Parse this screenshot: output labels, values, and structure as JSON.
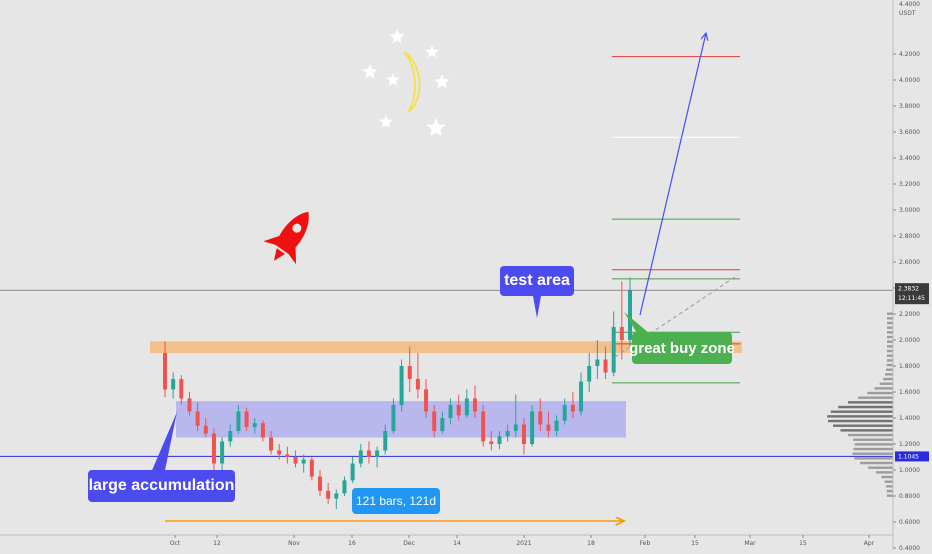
{
  "chart_data": {
    "type": "candlestick",
    "price_axis": {
      "currency": "USDT",
      "header_label": "4.4000",
      "ticks": [
        "4.2000",
        "4.0000",
        "3.8000",
        "3.6000",
        "3.4000",
        "3.2000",
        "3.0000",
        "2.8000",
        "2.6000",
        "2.4000",
        "2.2000",
        "2.0000",
        "1.8000",
        "1.6000",
        "1.4000",
        "1.2000",
        "1.0000",
        "0.8000",
        "0.6000",
        "0.4000"
      ],
      "ylim": [
        0.19,
        4.4
      ]
    },
    "time_axis": {
      "ticks": [
        "Oct",
        "12",
        "Nov",
        "16",
        "Dec",
        "14",
        "2021",
        "18",
        "Feb",
        "15",
        "Mar",
        "15",
        "Apr"
      ]
    },
    "current_price": {
      "value": 2.3832,
      "label": "2.3832",
      "countdown": "12:11:45"
    },
    "support_line": {
      "value": 1.1045,
      "label": "1.1045"
    },
    "zones": {
      "test_area": {
        "low": 1.9,
        "high": 1.99
      },
      "accumulation": {
        "low": 1.25,
        "high": 1.53
      }
    },
    "target_levels": [
      {
        "value": 4.18,
        "color": "#e53935"
      },
      {
        "value": 3.56,
        "color": "#ffffff"
      },
      {
        "value": 2.93,
        "color": "#43a047"
      },
      {
        "value": 2.54,
        "color": "#e53935"
      },
      {
        "value": 2.47,
        "color": "#43a047"
      },
      {
        "value": 2.06,
        "color": "#43a047"
      },
      {
        "value": 1.97,
        "color": "#e53935"
      },
      {
        "value": 1.67,
        "color": "#43a047"
      }
    ],
    "candles": [
      {
        "o": 1.9,
        "h": 1.99,
        "l": 1.56,
        "c": 1.62
      },
      {
        "o": 1.62,
        "h": 1.75,
        "l": 1.55,
        "c": 1.7
      },
      {
        "o": 1.7,
        "h": 1.73,
        "l": 1.5,
        "c": 1.55
      },
      {
        "o": 1.55,
        "h": 1.6,
        "l": 1.42,
        "c": 1.45
      },
      {
        "o": 1.45,
        "h": 1.52,
        "l": 1.3,
        "c": 1.34
      },
      {
        "o": 1.34,
        "h": 1.4,
        "l": 1.25,
        "c": 1.28
      },
      {
        "o": 1.28,
        "h": 1.32,
        "l": 0.95,
        "c": 1.05
      },
      {
        "o": 1.05,
        "h": 1.25,
        "l": 1.0,
        "c": 1.22
      },
      {
        "o": 1.22,
        "h": 1.35,
        "l": 1.18,
        "c": 1.3
      },
      {
        "o": 1.3,
        "h": 1.5,
        "l": 1.28,
        "c": 1.45
      },
      {
        "o": 1.45,
        "h": 1.48,
        "l": 1.3,
        "c": 1.33
      },
      {
        "o": 1.33,
        "h": 1.4,
        "l": 1.28,
        "c": 1.36
      },
      {
        "o": 1.36,
        "h": 1.38,
        "l": 1.22,
        "c": 1.25
      },
      {
        "o": 1.25,
        "h": 1.3,
        "l": 1.12,
        "c": 1.15
      },
      {
        "o": 1.15,
        "h": 1.2,
        "l": 1.08,
        "c": 1.12
      },
      {
        "o": 1.12,
        "h": 1.18,
        "l": 1.05,
        "c": 1.1
      },
      {
        "o": 1.1,
        "h": 1.15,
        "l": 1.02,
        "c": 1.05
      },
      {
        "o": 1.05,
        "h": 1.12,
        "l": 0.98,
        "c": 1.08
      },
      {
        "o": 1.08,
        "h": 1.1,
        "l": 0.92,
        "c": 0.95
      },
      {
        "o": 0.95,
        "h": 1.0,
        "l": 0.8,
        "c": 0.84
      },
      {
        "o": 0.84,
        "h": 0.9,
        "l": 0.74,
        "c": 0.78
      },
      {
        "o": 0.78,
        "h": 0.85,
        "l": 0.7,
        "c": 0.82
      },
      {
        "o": 0.82,
        "h": 0.95,
        "l": 0.8,
        "c": 0.92
      },
      {
        "o": 0.92,
        "h": 1.1,
        "l": 0.9,
        "c": 1.05
      },
      {
        "o": 1.05,
        "h": 1.2,
        "l": 1.02,
        "c": 1.15
      },
      {
        "o": 1.15,
        "h": 1.22,
        "l": 1.05,
        "c": 1.1
      },
      {
        "o": 1.1,
        "h": 1.18,
        "l": 1.02,
        "c": 1.15
      },
      {
        "o": 1.15,
        "h": 1.35,
        "l": 1.12,
        "c": 1.3
      },
      {
        "o": 1.3,
        "h": 1.55,
        "l": 1.28,
        "c": 1.5
      },
      {
        "o": 1.5,
        "h": 1.85,
        "l": 1.45,
        "c": 1.8
      },
      {
        "o": 1.8,
        "h": 1.95,
        "l": 1.6,
        "c": 1.7
      },
      {
        "o": 1.7,
        "h": 1.9,
        "l": 1.55,
        "c": 1.62
      },
      {
        "o": 1.62,
        "h": 1.7,
        "l": 1.4,
        "c": 1.45
      },
      {
        "o": 1.45,
        "h": 1.5,
        "l": 1.25,
        "c": 1.3
      },
      {
        "o": 1.3,
        "h": 1.45,
        "l": 1.28,
        "c": 1.4
      },
      {
        "o": 1.4,
        "h": 1.55,
        "l": 1.35,
        "c": 1.5
      },
      {
        "o": 1.5,
        "h": 1.58,
        "l": 1.38,
        "c": 1.42
      },
      {
        "o": 1.42,
        "h": 1.62,
        "l": 1.4,
        "c": 1.55
      },
      {
        "o": 1.55,
        "h": 1.65,
        "l": 1.4,
        "c": 1.45
      },
      {
        "o": 1.45,
        "h": 1.5,
        "l": 1.18,
        "c": 1.22
      },
      {
        "o": 1.22,
        "h": 1.3,
        "l": 1.15,
        "c": 1.2
      },
      {
        "o": 1.2,
        "h": 1.3,
        "l": 1.16,
        "c": 1.26
      },
      {
        "o": 1.26,
        "h": 1.35,
        "l": 1.22,
        "c": 1.3
      },
      {
        "o": 1.3,
        "h": 1.58,
        "l": 1.25,
        "c": 1.35
      },
      {
        "o": 1.35,
        "h": 1.4,
        "l": 1.12,
        "c": 1.2
      },
      {
        "o": 1.2,
        "h": 1.5,
        "l": 1.18,
        "c": 1.45
      },
      {
        "o": 1.45,
        "h": 1.55,
        "l": 1.3,
        "c": 1.35
      },
      {
        "o": 1.35,
        "h": 1.45,
        "l": 1.25,
        "c": 1.3
      },
      {
        "o": 1.3,
        "h": 1.42,
        "l": 1.26,
        "c": 1.38
      },
      {
        "o": 1.38,
        "h": 1.55,
        "l": 1.35,
        "c": 1.5
      },
      {
        "o": 1.5,
        "h": 1.6,
        "l": 1.4,
        "c": 1.45
      },
      {
        "o": 1.45,
        "h": 1.75,
        "l": 1.42,
        "c": 1.68
      },
      {
        "o": 1.68,
        "h": 1.9,
        "l": 1.6,
        "c": 1.8
      },
      {
        "o": 1.8,
        "h": 2.0,
        "l": 1.7,
        "c": 1.85
      },
      {
        "o": 1.85,
        "h": 1.95,
        "l": 1.7,
        "c": 1.75
      },
      {
        "o": 1.75,
        "h": 2.22,
        "l": 1.72,
        "c": 2.1
      },
      {
        "o": 2.1,
        "h": 2.45,
        "l": 1.85,
        "c": 2.0
      },
      {
        "o": 2.0,
        "h": 2.48,
        "l": 1.95,
        "c": 2.38
      }
    ],
    "profile_rows": 40,
    "title": "",
    "xlabel": "",
    "ylabel": "USDT"
  },
  "annotations": {
    "test_area": "test area",
    "great_buy_zone": "great buy zone",
    "large_accumulation": "large accumulation",
    "bars_range": "121 bars, 121d"
  },
  "colors": {
    "background": "#e6e6e6",
    "up": "#26a69a",
    "down": "#ef5350",
    "support": "#2b2bde",
    "test_area": "#f2b87a",
    "accumulation": "#a8a8f0",
    "callout_blue": "#4b4bf0",
    "callout_green": "#4caf50",
    "range_box": "#2196f3",
    "range_arrow": "#ff9800"
  }
}
